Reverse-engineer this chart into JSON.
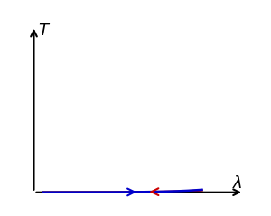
{
  "title": "",
  "xlabel": "λ",
  "ylabel": "T",
  "background_color": "#ffffff",
  "blue_color": "#0000cc",
  "red_color": "#cc0000",
  "xlim": [
    0,
    1.15
  ],
  "ylim": [
    0,
    1.15
  ],
  "figsize": [
    3.0,
    2.39
  ],
  "dpi": 100
}
